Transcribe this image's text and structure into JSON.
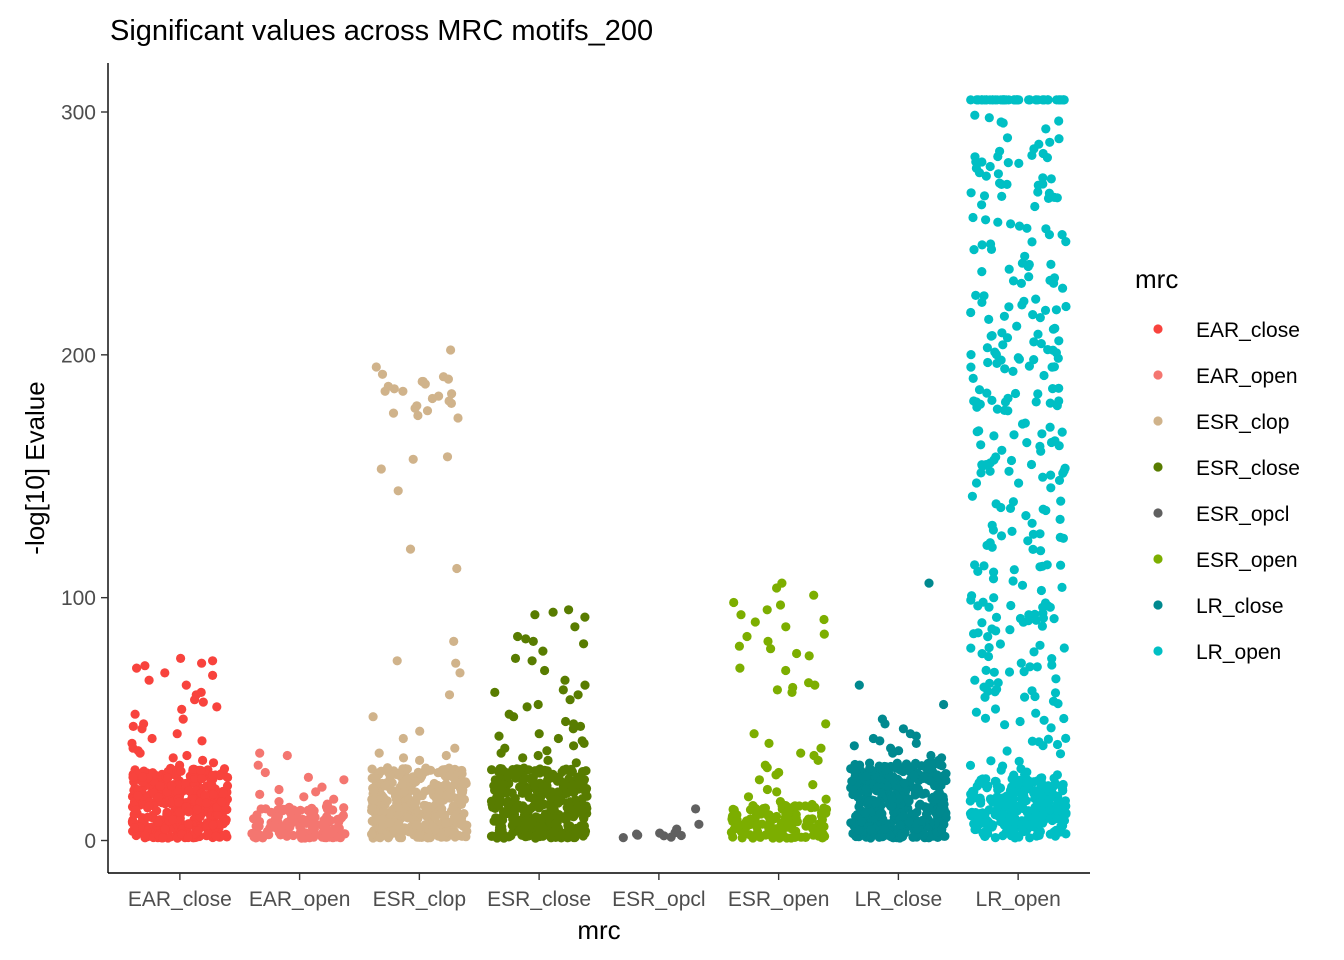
{
  "chart_data": {
    "type": "scatter",
    "subtype": "jitter strip plot",
    "title": "Significant values across MRC motifs_200",
    "xlabel": "mrc",
    "ylabel": "-log[10] Evalue",
    "categories": [
      "EAR_close",
      "EAR_open",
      "ESR_clop",
      "ESR_close",
      "ESR_opcl",
      "ESR_open",
      "LR_close",
      "LR_open"
    ],
    "ylim": [
      -13,
      322
    ],
    "yticks": [
      0,
      100,
      200,
      300
    ],
    "grid": false,
    "legend": {
      "title": "mrc",
      "position": "right",
      "entries": [
        "EAR_close",
        "EAR_open",
        "ESR_clop",
        "ESR_close",
        "ESR_opcl",
        "ESR_open",
        "LR_close",
        "LR_open"
      ]
    },
    "colors": {
      "EAR_close": "#F8433D",
      "EAR_open": "#F47670",
      "ESR_clop": "#D0B38B",
      "ESR_close": "#587C00",
      "ESR_opcl": "#606060",
      "ESR_open": "#7CAE00",
      "LR_close": "#00898F",
      "LR_open": "#00BFC4"
    },
    "series": [
      {
        "name": "EAR_close",
        "outliers": [
          75,
          74,
          73,
          72,
          71,
          69,
          68,
          66,
          64,
          61,
          60,
          58,
          57,
          55,
          54,
          52,
          50,
          48,
          47,
          46,
          44,
          42,
          41,
          40,
          38,
          37,
          36,
          35,
          34,
          33,
          32,
          31
        ],
        "bulk": {
          "count": 380,
          "min": 1,
          "max": 30
        }
      },
      {
        "name": "EAR_open",
        "outliers": [
          36,
          35,
          31,
          28,
          26,
          25,
          22,
          21,
          20,
          19,
          18,
          17,
          16,
          15
        ],
        "bulk": {
          "count": 130,
          "min": 1,
          "max": 14
        }
      },
      {
        "name": "ESR_clop",
        "outliers": [
          202,
          195,
          192,
          191,
          190,
          189,
          189,
          188,
          187,
          186,
          185,
          185,
          184,
          183,
          182,
          181,
          180,
          179,
          178,
          177,
          176,
          175,
          174,
          158,
          157,
          153,
          144,
          120,
          112,
          82,
          74,
          73,
          69,
          60,
          51,
          45,
          42,
          38,
          36,
          35,
          34,
          33
        ],
        "bulk": {
          "count": 380,
          "min": 1,
          "max": 30
        }
      },
      {
        "name": "ESR_close",
        "outliers": [
          95,
          94,
          93,
          92,
          88,
          84,
          83,
          82,
          81,
          78,
          75,
          74,
          70,
          66,
          64,
          62,
          61,
          60,
          58,
          56,
          55,
          52,
          51,
          49,
          48,
          47,
          46,
          44,
          43,
          42,
          41,
          40,
          39,
          38,
          37,
          36,
          35,
          34,
          33,
          32
        ],
        "bulk": {
          "count": 340,
          "min": 1,
          "max": 30
        }
      },
      {
        "name": "ESR_opcl",
        "outliers": [
          13
        ],
        "bulk": {
          "count": 10,
          "min": 1,
          "max": 7
        }
      },
      {
        "name": "ESR_open",
        "outliers": [
          106,
          104,
          101,
          98,
          97,
          95,
          93,
          91,
          90,
          88,
          85,
          84,
          82,
          80,
          79,
          77,
          76,
          71,
          70,
          65,
          64,
          63,
          62,
          61,
          48,
          44,
          40,
          38,
          36,
          35,
          33,
          31,
          30,
          28,
          27,
          25,
          23,
          21,
          20,
          18,
          17,
          16
        ],
        "bulk": {
          "count": 130,
          "min": 1,
          "max": 15
        }
      },
      {
        "name": "LR_close",
        "outliers": [
          106,
          64,
          56,
          50,
          48,
          46,
          44,
          43,
          42,
          41,
          40,
          39,
          38,
          37,
          36,
          35,
          34,
          33
        ],
        "bulk": {
          "count": 400,
          "min": 1,
          "max": 32
        }
      },
      {
        "name": "LR_open",
        "capped_value": 305,
        "capped_count": 50,
        "max_value": 305,
        "spread": {
          "count": 560,
          "min": 1,
          "max": 300
        }
      }
    ]
  }
}
